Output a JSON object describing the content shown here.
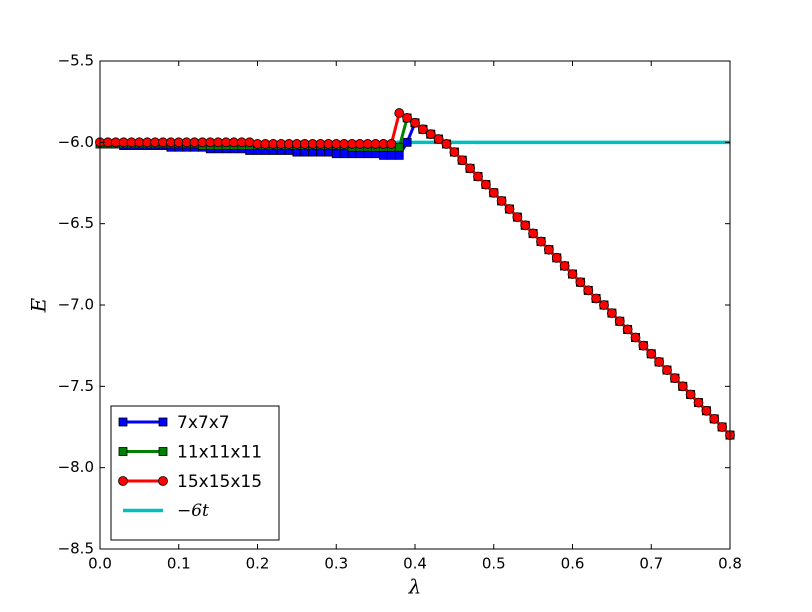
{
  "chart_data": {
    "type": "line",
    "x_label": "λ",
    "y_label": "E",
    "x": [
      0,
      0.01,
      0.02,
      0.03,
      0.04,
      0.05,
      0.06,
      0.07,
      0.08,
      0.09,
      0.1,
      0.11,
      0.12,
      0.13,
      0.14,
      0.15,
      0.16,
      0.17,
      0.18,
      0.19,
      0.2,
      0.21,
      0.22,
      0.23,
      0.24,
      0.25,
      0.26,
      0.27,
      0.28,
      0.29,
      0.3,
      0.31,
      0.32,
      0.33,
      0.34,
      0.35,
      0.36,
      0.37,
      0.38,
      0.39,
      0.4,
      0.41,
      0.42,
      0.43,
      0.44,
      0.45,
      0.46,
      0.47,
      0.48,
      0.49,
      0.5,
      0.51,
      0.52,
      0.53,
      0.54,
      0.55,
      0.56,
      0.57,
      0.58,
      0.59,
      0.6,
      0.61,
      0.62,
      0.63,
      0.64,
      0.65,
      0.66,
      0.67,
      0.68,
      0.69,
      0.7,
      0.71,
      0.72,
      0.73,
      0.74,
      0.75,
      0.76,
      0.77,
      0.78,
      0.79,
      0.8
    ],
    "series": [
      {
        "name": "−6t",
        "color": "#00bfbf",
        "marker": "none",
        "x": [
          0,
          0.8
        ],
        "values": [
          -6,
          -6
        ]
      },
      {
        "name": "7x7x7",
        "color": "#0000ff",
        "marker": "square",
        "values": [
          -6.01,
          -6.01,
          -6.01,
          -6.02,
          -6.02,
          -6.02,
          -6.02,
          -6.02,
          -6.02,
          -6.03,
          -6.03,
          -6.03,
          -6.03,
          -6.03,
          -6.04,
          -6.04,
          -6.04,
          -6.04,
          -6.04,
          -6.05,
          -6.05,
          -6.05,
          -6.05,
          -6.05,
          -6.05,
          -6.06,
          -6.06,
          -6.06,
          -6.06,
          -6.06,
          -6.07,
          -6.07,
          -6.07,
          -6.07,
          -6.07,
          -6.07,
          -6.08,
          -6.08,
          -6.08,
          -6.0,
          -5.88,
          -5.92,
          -5.95,
          -5.98,
          -6.01,
          -6.06,
          -6.11,
          -6.16,
          -6.21,
          -6.26,
          -6.31,
          -6.36,
          -6.41,
          -6.46,
          -6.51,
          -6.56,
          -6.61,
          -6.66,
          -6.71,
          -6.76,
          -6.81,
          -6.86,
          -6.91,
          -6.96,
          -7.0,
          -7.05,
          -7.1,
          -7.15,
          -7.2,
          -7.25,
          -7.3,
          -7.35,
          -7.4,
          -7.45,
          -7.5,
          -7.55,
          -7.6,
          -7.65,
          -7.7,
          -7.75,
          -7.8
        ]
      },
      {
        "name": "11x11x11",
        "color": "#008000",
        "marker": "square",
        "values": [
          -6.01,
          -6.01,
          -6.01,
          -6.01,
          -6.01,
          -6.01,
          -6.01,
          -6.01,
          -6.01,
          -6.01,
          -6.01,
          -6.01,
          -6.01,
          -6.02,
          -6.02,
          -6.02,
          -6.02,
          -6.02,
          -6.02,
          -6.02,
          -6.02,
          -6.02,
          -6.02,
          -6.02,
          -6.02,
          -6.02,
          -6.02,
          -6.02,
          -6.02,
          -6.02,
          -6.02,
          -6.02,
          -6.03,
          -6.03,
          -6.03,
          -6.03,
          -6.03,
          -6.03,
          -6.03,
          -5.85,
          -5.88,
          -5.92,
          -5.95,
          -5.98,
          -6.01,
          -6.06,
          -6.11,
          -6.16,
          -6.21,
          -6.26,
          -6.31,
          -6.36,
          -6.41,
          -6.46,
          -6.51,
          -6.56,
          -6.61,
          -6.66,
          -6.71,
          -6.76,
          -6.81,
          -6.86,
          -6.91,
          -6.96,
          -7.0,
          -7.05,
          -7.1,
          -7.15,
          -7.2,
          -7.25,
          -7.3,
          -7.35,
          -7.4,
          -7.45,
          -7.5,
          -7.55,
          -7.6,
          -7.65,
          -7.7,
          -7.75,
          -7.8
        ]
      },
      {
        "name": "15x15x15",
        "color": "#ff0000",
        "marker": "circle",
        "values": [
          -6.0,
          -6.0,
          -6.0,
          -6.0,
          -6.0,
          -6.0,
          -6.0,
          -6.0,
          -6.0,
          -6.0,
          -6.0,
          -6.0,
          -6.0,
          -6.0,
          -6.0,
          -6.0,
          -6.0,
          -6.0,
          -6.0,
          -6.0,
          -6.01,
          -6.01,
          -6.01,
          -6.01,
          -6.01,
          -6.01,
          -6.01,
          -6.01,
          -6.01,
          -6.01,
          -6.01,
          -6.01,
          -6.01,
          -6.01,
          -6.01,
          -6.01,
          -6.01,
          -6.01,
          -5.82,
          -5.85,
          -5.88,
          -5.92,
          -5.95,
          -5.98,
          -6.01,
          -6.06,
          -6.11,
          -6.16,
          -6.21,
          -6.26,
          -6.31,
          -6.36,
          -6.41,
          -6.46,
          -6.51,
          -6.56,
          -6.61,
          -6.66,
          -6.71,
          -6.76,
          -6.81,
          -6.86,
          -6.91,
          -6.96,
          -7.0,
          -7.05,
          -7.1,
          -7.15,
          -7.2,
          -7.25,
          -7.3,
          -7.35,
          -7.4,
          -7.45,
          -7.5,
          -7.55,
          -7.6,
          -7.65,
          -7.7,
          -7.75,
          -7.8
        ]
      }
    ],
    "legend_order": [
      1,
      2,
      3,
      0
    ],
    "xlim": [
      0,
      0.8
    ],
    "ylim": [
      -8.5,
      -5.5
    ],
    "xticks": [
      {
        "value": 0,
        "label": "0.0"
      },
      0.1,
      0.2,
      0.3,
      0.4,
      0.5,
      0.6,
      0.7,
      0.8
    ],
    "yticks": [
      {
        "value": -8.5,
        "label": "−8.5"
      },
      {
        "value": -8,
        "label": "−8.0"
      },
      {
        "value": -7.5,
        "label": "−7.5"
      },
      {
        "value": -7,
        "label": "−7.0"
      },
      {
        "value": -6.5,
        "label": "−6.5"
      },
      {
        "value": -6,
        "label": "−6.0"
      },
      {
        "value": -5.5,
        "label": "−5.5"
      }
    ],
    "legend": "lower left",
    "grid": false
  }
}
